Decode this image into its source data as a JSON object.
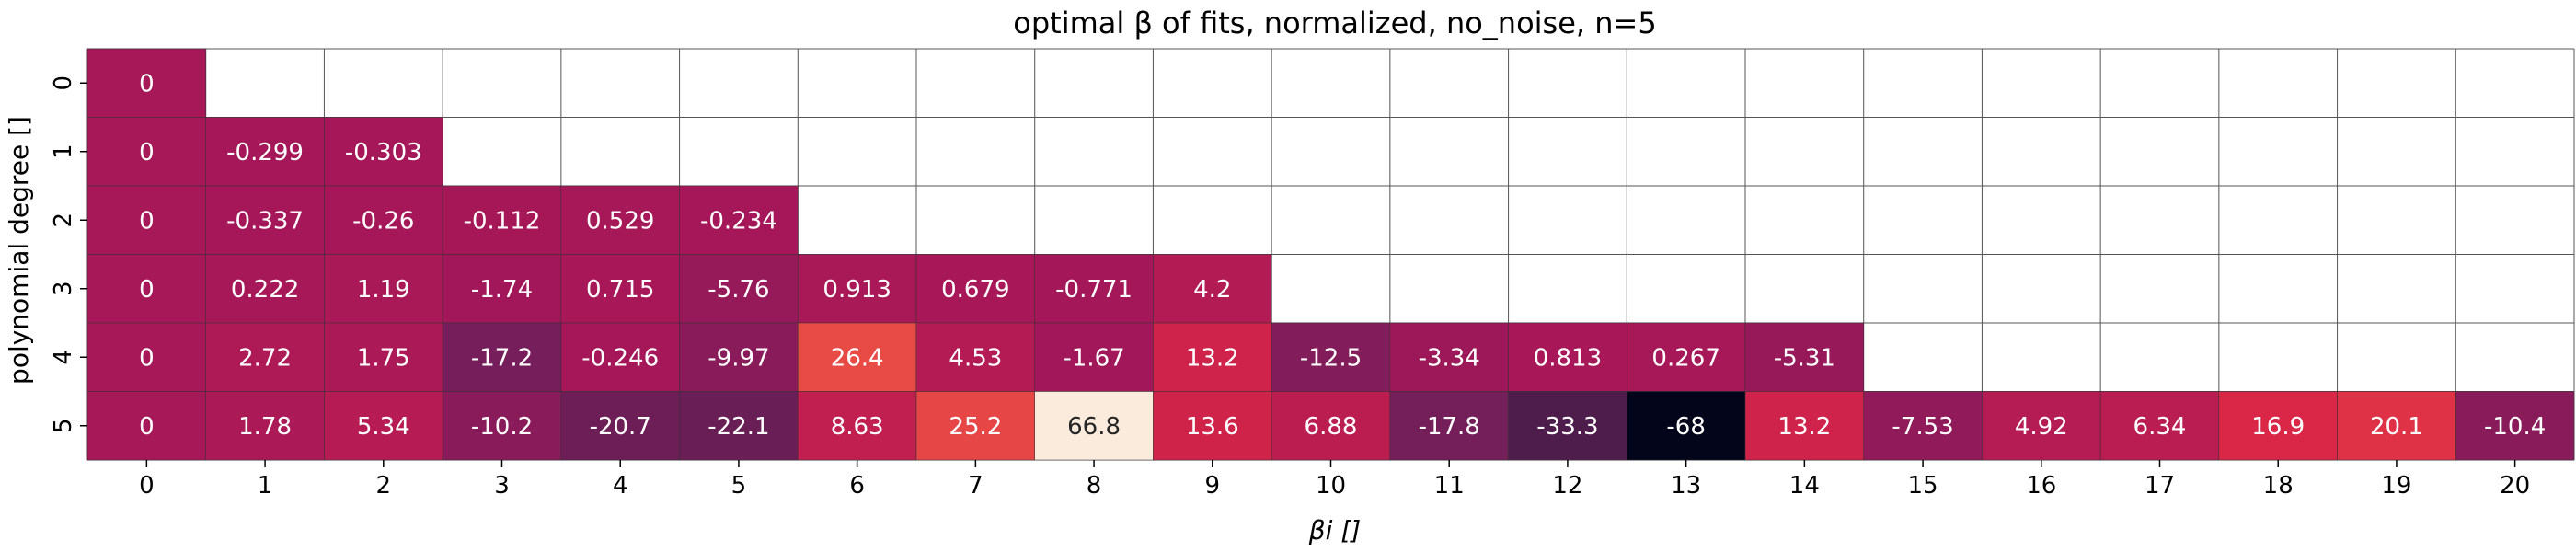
{
  "chart_data": {
    "type": "heatmap",
    "title": "optimal β of fits, normalized, no_noise, n=5",
    "xlabel": "βi []",
    "ylabel": "polynomial degree []",
    "x_ticks": [
      "0",
      "1",
      "2",
      "3",
      "4",
      "5",
      "6",
      "7",
      "8",
      "9",
      "10",
      "11",
      "12",
      "13",
      "14",
      "15",
      "16",
      "17",
      "18",
      "19",
      "20"
    ],
    "y_ticks": [
      "0",
      "1",
      "2",
      "3",
      "4",
      "5"
    ],
    "vmin": -68,
    "vmax": 66.8,
    "colormap": "rocket",
    "rows": [
      [
        0
      ],
      [
        0,
        -0.299,
        -0.303
      ],
      [
        0,
        -0.337,
        -0.26,
        -0.112,
        0.529,
        -0.234
      ],
      [
        0,
        0.222,
        1.19,
        -1.74,
        0.715,
        -5.76,
        0.913,
        0.679,
        -0.771,
        4.2
      ],
      [
        0,
        2.72,
        1.75,
        -17.2,
        -0.246,
        -9.97,
        26.4,
        4.53,
        -1.67,
        13.2,
        -12.5,
        -3.34,
        0.813,
        0.267,
        -5.31
      ],
      [
        0,
        1.78,
        5.34,
        -10.2,
        -20.7,
        -22.1,
        8.63,
        25.2,
        66.8,
        13.6,
        6.88,
        -17.8,
        -33.3,
        -68,
        13.2,
        -7.53,
        4.92,
        6.34,
        16.9,
        20.1,
        -10.4
      ]
    ],
    "labels": [
      [
        "0"
      ],
      [
        "0",
        "-0.299",
        "-0.303"
      ],
      [
        "0",
        "-0.337",
        "-0.26",
        "-0.112",
        "0.529",
        "-0.234"
      ],
      [
        "0",
        "0.222",
        "1.19",
        "-1.74",
        "0.715",
        "-5.76",
        "0.913",
        "0.679",
        "-0.771",
        "4.2"
      ],
      [
        "0",
        "2.72",
        "1.75",
        "-17.2",
        "-0.246",
        "-9.97",
        "26.4",
        "4.53",
        "-1.67",
        "13.2",
        "-12.5",
        "-3.34",
        "0.813",
        "0.267",
        "-5.31"
      ],
      [
        "0",
        "1.78",
        "5.34",
        "-10.2",
        "-20.7",
        "-22.1",
        "8.63",
        "25.2",
        "66.8",
        "13.6",
        "6.88",
        "-17.8",
        "-33.3",
        "-68",
        "13.2",
        "-7.53",
        "4.92",
        "6.34",
        "16.9",
        "20.1",
        "-10.4"
      ]
    ],
    "grid": true
  }
}
